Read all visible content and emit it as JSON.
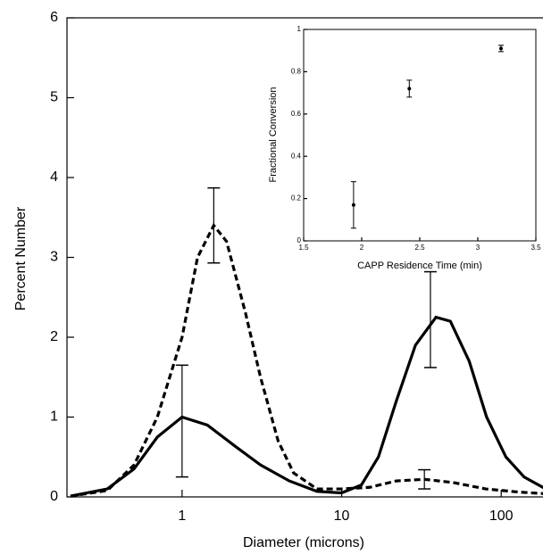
{
  "chart_data": [
    {
      "type": "line",
      "x_label": "Diameter (microns)",
      "y_label": "Percent Number",
      "log_x": true,
      "xlim": [
        0.19,
        200
      ],
      "xticks": [
        1,
        10,
        100
      ],
      "ylim": [
        0,
        6
      ],
      "yticks": [
        0,
        1,
        2,
        3,
        4,
        5,
        6
      ],
      "series": [
        {
          "color": "#000000",
          "line_style": "solid",
          "x": [
            0.2,
            0.34,
            0.5,
            0.7,
            1.0,
            1.44,
            2.1,
            3.1,
            4.7,
            7,
            10,
            13.3,
            17,
            22,
            29,
            39,
            48,
            63,
            81,
            107,
            139,
            190
          ],
          "values": [
            0.01,
            0.1,
            0.35,
            0.75,
            1.0,
            0.9,
            0.65,
            0.4,
            0.2,
            0.07,
            0.05,
            0.15,
            0.5,
            1.2,
            1.9,
            2.25,
            2.2,
            1.7,
            1.0,
            0.5,
            0.25,
            0.1
          ]
        },
        {
          "color": "#000000",
          "line_style": "dashed",
          "x": [
            0.2,
            0.34,
            0.5,
            0.7,
            1.0,
            1.25,
            1.58,
            1.9,
            2.5,
            3.1,
            4.0,
            5.0,
            7,
            10,
            15,
            22,
            33,
            50,
            80,
            130,
            190
          ],
          "values": [
            0.01,
            0.08,
            0.4,
            1.0,
            2.0,
            3.0,
            3.4,
            3.2,
            2.3,
            1.5,
            0.7,
            0.3,
            0.1,
            0.1,
            0.12,
            0.2,
            0.22,
            0.18,
            0.1,
            0.06,
            0.04
          ]
        }
      ],
      "error_bars": {
        "x": [
          1,
          1.58,
          36,
          33
        ],
        "y": [
          0.95,
          3.4,
          2.22,
          0.22
        ],
        "err": [
          0.7,
          0.47,
          0.6,
          0.12
        ]
      }
    },
    {
      "type": "scatter",
      "x_label": "CAPP Residence Time (min)",
      "y_label": "Fractional Conversion",
      "xlim": [
        1.5,
        3.5
      ],
      "xticks": [
        1.5,
        2,
        2.5,
        3,
        3.5
      ],
      "ylim": [
        0,
        1
      ],
      "yticks": [
        0,
        0.2,
        0.4,
        0.6,
        0.8,
        1
      ],
      "color": "#000000",
      "x": [
        1.93,
        2.41,
        3.2
      ],
      "values": [
        0.17,
        0.72,
        0.91
      ],
      "errors": [
        0.11,
        0.04,
        0.015
      ]
    }
  ]
}
